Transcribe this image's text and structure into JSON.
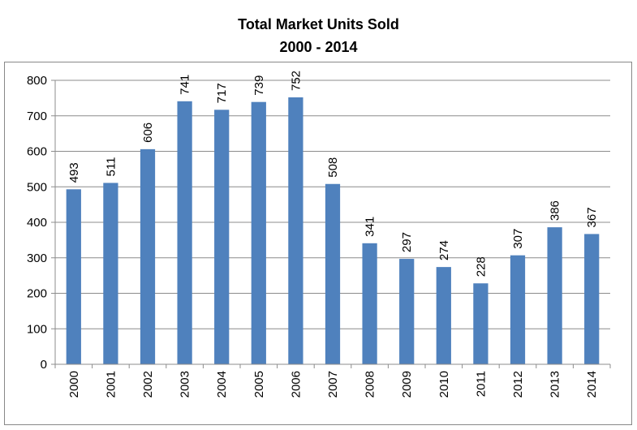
{
  "chart_data": {
    "type": "bar",
    "title": "Total Market Units Sold",
    "subtitle": "2000 - 2014",
    "xlabel": "",
    "ylabel": "",
    "categories": [
      "2000",
      "2001",
      "2002",
      "2003",
      "2004",
      "2005",
      "2006",
      "2007",
      "2008",
      "2009",
      "2010",
      "2011",
      "2012",
      "2013",
      "2014"
    ],
    "values": [
      493,
      511,
      606,
      741,
      717,
      739,
      752,
      508,
      341,
      297,
      274,
      228,
      307,
      386,
      367
    ],
    "ylim": [
      0,
      800
    ],
    "yticks": [
      0,
      100,
      200,
      300,
      400,
      500,
      600,
      700,
      800
    ],
    "grid": true,
    "legend": "none",
    "bar_color": "#4F81BD",
    "data_labels": true
  }
}
